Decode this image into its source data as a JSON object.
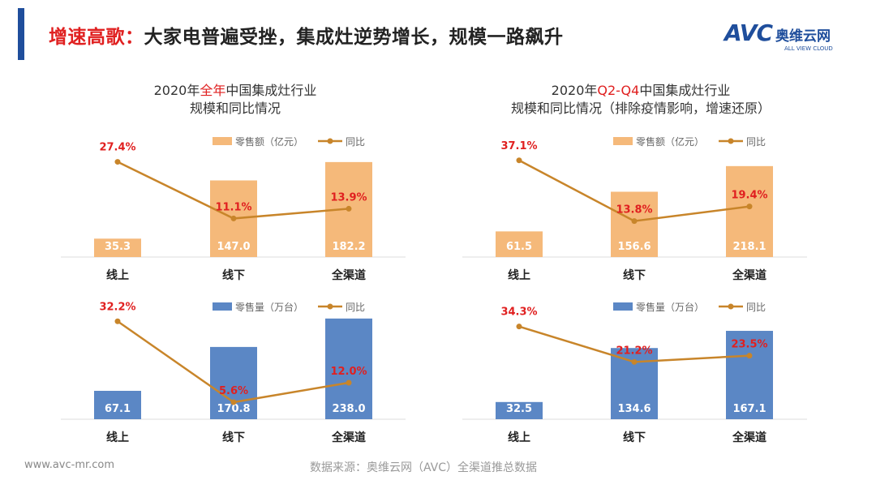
{
  "header": {
    "title_highlight": "增速高歌：",
    "title_rest": "大家电普遍受挫，集成灶逆势增长，规模一路飙升",
    "logo_text": "AVC",
    "logo_cn": "奥维云网",
    "logo_sub": "ALL VIEW CLOUD"
  },
  "left_title": {
    "line1_a": "2020年",
    "line1_hl": "全年",
    "line1_b": "中国集成灶行业",
    "line2": "规模和同比情况"
  },
  "right_title": {
    "line1_a": "2020年",
    "line1_hl": "Q2-Q4",
    "line1_b": "中国集成灶行业",
    "line2": "规模和同比情况（排除疫情影响，增速还原）"
  },
  "footer": {
    "url": "www.avc-mr.com",
    "source": "数据来源：奥维云网（AVC）全渠道推总数据"
  },
  "colors": {
    "amount_bar": "#f5b97a",
    "volume_bar": "#5b87c5",
    "line": "#c8852a",
    "pct_label": "#e02020"
  },
  "chart_data": [
    {
      "type": "bar+line",
      "categories": [
        "线上",
        "线下",
        "全渠道"
      ],
      "bar_series": {
        "name": "零售额（亿元）",
        "values": [
          35.3,
          147.0,
          182.2
        ]
      },
      "line_series": {
        "name": "同比",
        "values": [
          27.4,
          11.1,
          13.9
        ],
        "labels": [
          "27.4%",
          "11.1%",
          "13.9%"
        ]
      },
      "bar_ylim": [
        0,
        280
      ],
      "line_ylim": [
        0,
        42
      ],
      "legend": "top-right"
    },
    {
      "type": "bar+line",
      "categories": [
        "线上",
        "线下",
        "全渠道"
      ],
      "bar_series": {
        "name": "零售额（亿元）",
        "values": [
          61.5,
          156.6,
          218.1
        ]
      },
      "line_series": {
        "name": "同比",
        "values": [
          37.1,
          13.8,
          19.4
        ],
        "labels": [
          "37.1%",
          "13.8%",
          "19.4%"
        ]
      },
      "bar_ylim": [
        0,
        350
      ],
      "line_ylim": [
        0,
        56
      ],
      "legend": "top-right"
    },
    {
      "type": "bar+line",
      "categories": [
        "线上",
        "线下",
        "全渠道"
      ],
      "bar_series": {
        "name": "零售量（万台）",
        "values": [
          67.1,
          170.8,
          238.0
        ]
      },
      "line_series": {
        "name": "同比",
        "values": [
          32.2,
          5.6,
          12.0
        ],
        "labels": [
          "32.2%",
          "5.6%",
          "12.0%"
        ]
      },
      "bar_ylim": [
        0,
        345
      ],
      "line_ylim": [
        0,
        48
      ],
      "legend": "top-right"
    },
    {
      "type": "bar+line",
      "categories": [
        "线上",
        "线下",
        "全渠道"
      ],
      "bar_series": {
        "name": "零售量（万台）",
        "values": [
          32.5,
          134.6,
          167.1
        ]
      },
      "line_series": {
        "name": "同比",
        "values": [
          34.3,
          21.2,
          23.5
        ],
        "labels": [
          "34.3%",
          "21.2%",
          "23.5%"
        ]
      },
      "bar_ylim": [
        0,
        276
      ],
      "line_ylim": [
        0,
        54
      ],
      "legend": "top-right"
    }
  ]
}
